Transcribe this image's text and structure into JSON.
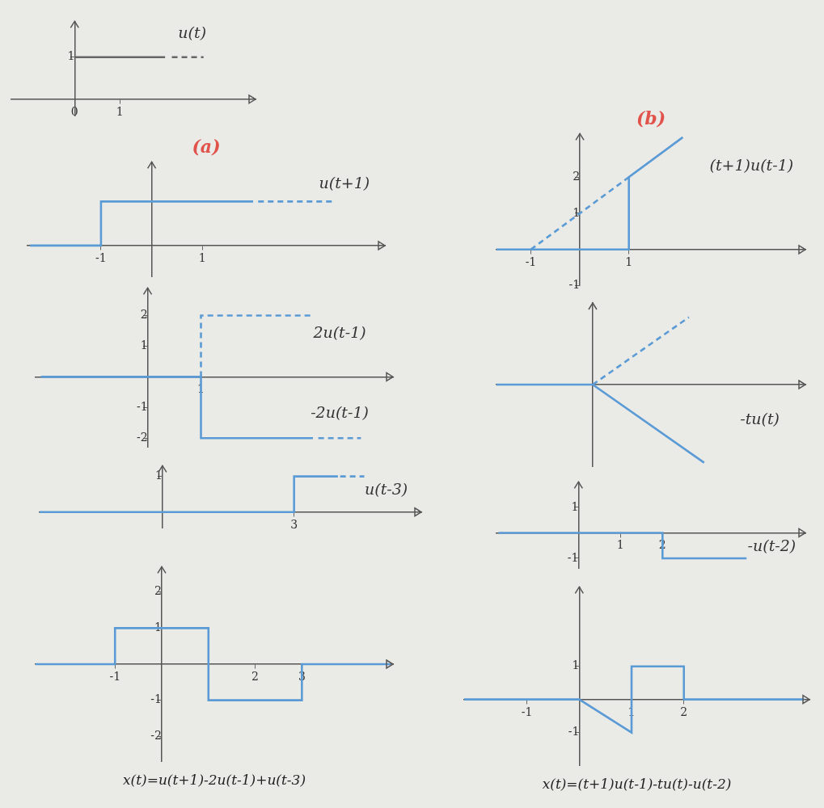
{
  "chart_data": [
    {
      "type": "line",
      "xlim": [
        -1.4,
        4.0
      ],
      "ylim": [
        -0.4,
        1.85
      ],
      "xticks": [
        0,
        1
      ],
      "yticks": [
        1
      ],
      "grid": false,
      "series": [
        {
          "name": "u(t)",
          "color": "#666666",
          "line_style": "solid",
          "x": [
            0,
            2
          ],
          "values": [
            1,
            1
          ]
        },
        {
          "name": "u(t)",
          "color": "#666666",
          "line_style": "dashed",
          "x": [
            2.15,
            2.85
          ],
          "values": [
            1,
            1
          ]
        }
      ],
      "annotations": [
        {
          "text": "u(t)",
          "x": 2.6,
          "y": 1.55
        }
      ]
    },
    {
      "type": "line",
      "title": "(a)",
      "xlim": [
        -2.45,
        4.6
      ],
      "ylim": [
        -0.7,
        1.9
      ],
      "xticks": [
        -1,
        1
      ],
      "yticks": [],
      "grid": false,
      "series": [
        {
          "name": "u(t+1)",
          "color": "#5b9bd5",
          "line_style": "solid",
          "x": [
            -2.4,
            -1,
            -1,
            2
          ],
          "values": [
            0,
            0,
            1,
            1
          ]
        },
        {
          "name": "u(t+1)",
          "color": "#5b9bd5",
          "line_style": "dashed",
          "x": [
            2.1,
            3.6
          ],
          "values": [
            1,
            1
          ]
        }
      ],
      "annotations": [
        {
          "text": "u(t+1)",
          "x": 3.8,
          "y": 1.4
        }
      ]
    },
    {
      "type": "line",
      "xlim": [
        -2.1,
        4.6
      ],
      "ylim": [
        -2.3,
        2.9
      ],
      "xticks": [
        1
      ],
      "yticks": [
        -2,
        -1,
        1,
        2
      ],
      "grid": false,
      "series": [
        {
          "name": "2u(t-1)",
          "color": "#5b9bd5",
          "line_style": "dashed",
          "x": [
            1,
            1,
            3.1
          ],
          "values": [
            0,
            2,
            2
          ]
        },
        {
          "name": "-2u(t-1)",
          "color": "#5b9bd5",
          "line_style": "solid",
          "x": [
            -2,
            1,
            1,
            3.1
          ],
          "values": [
            0,
            0,
            -2,
            -2
          ]
        },
        {
          "name": "-2u(t-1)",
          "color": "#5b9bd5",
          "line_style": "dashed",
          "x": [
            3.2,
            4.0
          ],
          "values": [
            -2,
            -2
          ]
        }
      ],
      "annotations": [
        {
          "text": "2u(t-1)",
          "x": 3.6,
          "y": 1.4
        },
        {
          "text": "-2u(t-1)",
          "x": 3.6,
          "y": -1.2
        }
      ]
    },
    {
      "type": "line",
      "xlim": [
        -2.8,
        5.9
      ],
      "ylim": [
        -0.45,
        1.3
      ],
      "xticks": [
        3
      ],
      "yticks": [
        1
      ],
      "grid": false,
      "series": [
        {
          "name": "u(t-3)",
          "color": "#5b9bd5",
          "line_style": "solid",
          "x": [
            -2.8,
            3,
            3,
            4
          ],
          "values": [
            0,
            0,
            1,
            1
          ]
        },
        {
          "name": "u(t-3)",
          "color": "#5b9bd5",
          "line_style": "dashed",
          "x": [
            4.05,
            4.6
          ],
          "values": [
            1,
            1
          ]
        }
      ],
      "annotations": [
        {
          "text": "u(t-3)",
          "x": 5.1,
          "y": 0.6
        }
      ]
    },
    {
      "type": "line",
      "xlabel": "x(t)=u(t+1)-2u(t-1)+u(t-3)",
      "xlim": [
        -2.7,
        4.95
      ],
      "ylim": [
        -2.7,
        2.7
      ],
      "xticks": [
        -1,
        2,
        3
      ],
      "yticks": [
        -2,
        -1,
        1,
        2
      ],
      "grid": false,
      "series": [
        {
          "name": "x(t)",
          "color": "#5b9bd5",
          "line_style": "solid",
          "x": [
            -2.7,
            -1,
            -1,
            1,
            1,
            3,
            3,
            4.9
          ],
          "values": [
            0,
            0,
            1,
            1,
            -1,
            -1,
            0,
            0
          ]
        }
      ]
    },
    {
      "type": "line",
      "title": "(b)",
      "xlim": [
        -1.7,
        4.6
      ],
      "ylim": [
        -1.0,
        3.2
      ],
      "xticks": [
        -1,
        1
      ],
      "yticks": [
        -1,
        1,
        2
      ],
      "grid": false,
      "series": [
        {
          "name": "(t+1)u(t-1)",
          "color": "#5b9bd5",
          "line_style": "solid",
          "x": [
            -1.7,
            1,
            1,
            2.1
          ],
          "values": [
            0,
            0,
            2,
            3.1
          ]
        },
        {
          "name": "(t+1)u(t-1)",
          "color": "#5b9bd5",
          "line_style": "dashed",
          "x": [
            -1,
            1
          ],
          "values": [
            0,
            2
          ]
        }
      ],
      "annotations": [
        {
          "text": "(t+1)u(t-1)",
          "x": 3.5,
          "y": 2.3
        }
      ]
    },
    {
      "type": "line",
      "xlim": [
        -1.9,
        4.2
      ],
      "ylim": [
        -2.3,
        2.3
      ],
      "xticks": [],
      "yticks": [],
      "grid": false,
      "series": [
        {
          "name": "-tu(t)",
          "color": "#5b9bd5",
          "line_style": "solid",
          "x": [
            -1.9,
            0,
            2.2
          ],
          "values": [
            0,
            0,
            -2.2
          ]
        },
        {
          "name": "-tu(t)",
          "color": "#5b9bd5",
          "line_style": "dashed",
          "x": [
            0,
            1.9
          ],
          "values": [
            0,
            1.9
          ]
        }
      ],
      "annotations": [
        {
          "text": "-tu(t)",
          "x": 3.3,
          "y": -1.0
        }
      ]
    },
    {
      "type": "line",
      "xlim": [
        -1.95,
        5.4
      ],
      "ylim": [
        -1.4,
        2.0
      ],
      "xticks": [
        1,
        2
      ],
      "yticks": [
        -1,
        1
      ],
      "grid": false,
      "series": [
        {
          "name": "-u(t-2)",
          "color": "#5b9bd5",
          "line_style": "solid",
          "x": [
            -1.9,
            2,
            2,
            4
          ],
          "values": [
            0,
            0,
            -1,
            -1
          ]
        }
      ],
      "annotations": [
        {
          "text": "-u(t-2)",
          "x": 4.6,
          "y": -0.55
        }
      ]
    },
    {
      "type": "line",
      "xlabel": "x(t)=(t+1)u(t-1)-tu(t)-u(t-2)",
      "xlim": [
        -2.2,
        4.4
      ],
      "ylim": [
        -2.0,
        3.4
      ],
      "xticks": [
        -1,
        1,
        2
      ],
      "yticks": [
        -1,
        1
      ],
      "grid": false,
      "series": [
        {
          "name": "x(t)",
          "color": "#5b9bd5",
          "line_style": "solid",
          "x": [
            -2.2,
            0,
            1,
            1,
            2,
            2,
            4.3
          ],
          "values": [
            0,
            0,
            -1,
            1,
            1,
            0,
            0
          ]
        }
      ]
    }
  ]
}
